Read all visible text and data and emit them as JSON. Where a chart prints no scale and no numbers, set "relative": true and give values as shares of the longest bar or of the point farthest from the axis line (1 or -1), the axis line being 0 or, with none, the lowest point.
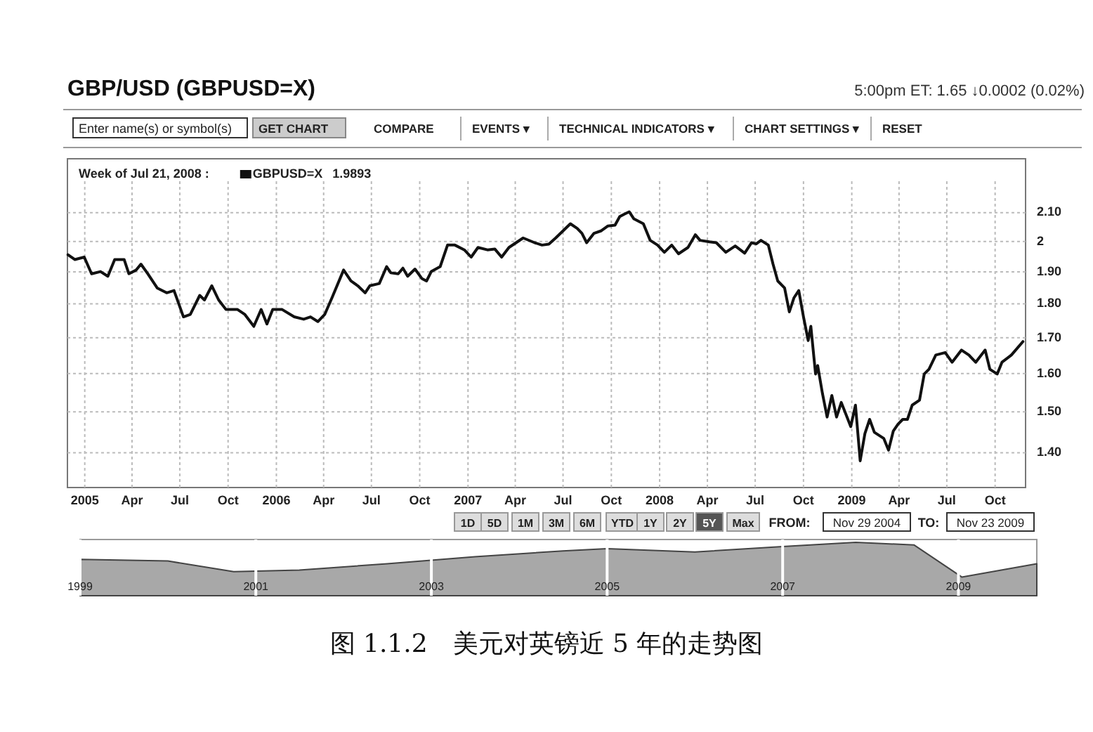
{
  "chart_data": [
    {
      "type": "line",
      "title": "GBP/USD (GBPUSD=X)",
      "log": true,
      "grid": true,
      "legend": "top left",
      "xlim": [
        "2004-11-29",
        "2009-11-28"
      ],
      "xticks": [
        {
          "value": "2005-01-01",
          "label": "2005"
        },
        {
          "value": "2005-04-01",
          "label": "Apr"
        },
        {
          "value": "2005-07-01",
          "label": "Jul"
        },
        {
          "value": "2005-10-01",
          "label": "Oct"
        },
        {
          "value": "2006-01-01",
          "label": "2006"
        },
        {
          "value": "2006-04-01",
          "label": "Apr"
        },
        {
          "value": "2006-07-01",
          "label": "Jul"
        },
        {
          "value": "2006-10-01",
          "label": "Oct"
        },
        {
          "value": "2007-01-01",
          "label": "2007"
        },
        {
          "value": "2007-04-01",
          "label": "Apr"
        },
        {
          "value": "2007-07-01",
          "label": "Jul"
        },
        {
          "value": "2007-10-01",
          "label": "Oct"
        },
        {
          "value": "2008-01-01",
          "label": "2008"
        },
        {
          "value": "2008-04-01",
          "label": "Apr"
        },
        {
          "value": "2008-07-01",
          "label": "Jul"
        },
        {
          "value": "2008-10-01",
          "label": "Oct"
        },
        {
          "value": "2009-01-01",
          "label": "2009"
        },
        {
          "value": "2009-04-01",
          "label": "Apr"
        },
        {
          "value": "2009-07-01",
          "label": "Jul"
        },
        {
          "value": "2009-10-01",
          "label": "Oct"
        }
      ],
      "ylim": [
        1.32,
        2.3
      ],
      "yticks": [
        {
          "value": 1.4,
          "label": "1.40"
        },
        {
          "value": 1.5,
          "label": "1.50"
        },
        {
          "value": 1.6,
          "label": "1.60"
        },
        {
          "value": 1.7,
          "label": "1.70"
        },
        {
          "value": 1.8,
          "label": "1.80"
        },
        {
          "value": 1.9,
          "label": "1.90"
        },
        2,
        {
          "value": 2.1,
          "label": "2.10"
        }
      ],
      "annotations": [
        "5:00pm ET: 1.65 ↓0.0002 (0.02%)",
        "Week of Jul 21, 2008 :",
        "1.9893",
        "Enter name(s) or symbol(s)",
        "GET CHART",
        "COMPARE",
        "EVENTS ▾",
        "TECHNICAL INDICATORS ▾",
        "CHART SETTINGS ▾",
        "RESET",
        "图 1.1.2　美元对英镑近 5 年的走势图"
      ],
      "series": [
        {
          "name": "GBPUSD=X",
          "color": "#111111",
          "x": [
            "2004-11-30",
            "2004-12-13",
            "2004-12-31",
            "2005-01-14",
            "2005-01-31",
            "2005-02-14",
            "2005-02-27",
            "2005-03-17",
            "2005-03-26",
            "2005-04-09",
            "2005-04-18",
            "2005-05-01",
            "2005-05-19",
            "2005-06-06",
            "2005-06-20",
            "2005-07-08",
            "2005-07-21",
            "2005-08-08",
            "2005-08-17",
            "2005-08-31",
            "2005-09-13",
            "2005-09-27",
            "2005-10-19",
            "2005-11-02",
            "2005-11-19",
            "2005-12-03",
            "2005-12-14",
            "2005-12-25",
            "2006-01-12",
            "2006-02-04",
            "2006-02-22",
            "2006-03-07",
            "2006-03-21",
            "2006-04-03",
            "2006-04-17",
            "2006-05-09",
            "2006-05-23",
            "2006-06-05",
            "2006-06-19",
            "2006-06-28",
            "2006-07-16",
            "2006-07-30",
            "2006-08-07",
            "2006-08-21",
            "2006-08-30",
            "2006-09-08",
            "2006-09-22",
            "2006-10-05",
            "2006-10-14",
            "2006-10-23",
            "2006-11-09",
            "2006-11-23",
            "2006-12-07",
            "2006-12-25",
            "2007-01-07",
            "2007-01-20",
            "2007-02-07",
            "2007-02-21",
            "2007-03-06",
            "2007-03-20",
            "2007-04-16",
            "2007-05-08",
            "2007-05-22",
            "2007-06-04",
            "2007-06-17",
            "2007-07-06",
            "2007-07-15",
            "2007-07-28",
            "2007-08-06",
            "2007-08-15",
            "2007-08-29",
            "2007-09-11",
            "2007-09-24",
            "2007-10-08",
            "2007-10-17",
            "2007-10-26",
            "2007-11-04",
            "2007-11-13",
            "2007-12-01",
            "2007-12-14",
            "2007-12-28",
            "2008-01-10",
            "2008-01-24",
            "2008-02-06",
            "2008-02-24",
            "2008-03-09",
            "2008-03-18",
            "2008-04-05",
            "2008-04-18",
            "2008-05-06",
            "2008-05-24",
            "2008-06-11",
            "2008-06-24",
            "2008-07-03",
            "2008-07-12",
            "2008-07-26",
            "2008-08-04",
            "2008-08-13",
            "2008-08-26",
            "2008-09-04",
            "2008-09-13",
            "2008-09-22",
            "2008-10-01",
            "2008-10-10",
            "2008-10-15",
            "2008-10-24",
            "2008-10-28",
            "2008-11-06",
            "2008-11-15",
            "2008-11-24",
            "2008-12-03",
            "2008-12-12",
            "2008-12-30",
            "2009-01-08",
            "2009-01-17",
            "2009-01-26",
            "2009-02-04",
            "2009-02-13",
            "2009-03-03",
            "2009-03-12",
            "2009-03-21",
            "2009-03-30",
            "2009-04-08",
            "2009-04-17",
            "2009-04-26",
            "2009-05-10",
            "2009-05-19",
            "2009-05-28",
            "2009-06-10",
            "2009-06-28",
            "2009-07-11",
            "2009-07-29",
            "2009-08-12",
            "2009-08-25",
            "2009-09-12",
            "2009-09-21",
            "2009-10-05",
            "2009-10-14",
            "2009-11-01",
            "2009-11-23"
          ],
          "values": [
            1.956,
            1.94,
            1.948,
            1.894,
            1.901,
            1.886,
            1.94,
            1.94,
            1.894,
            1.906,
            1.925,
            1.894,
            1.849,
            1.834,
            1.841,
            1.761,
            1.768,
            1.826,
            1.812,
            1.856,
            1.812,
            1.783,
            1.783,
            1.768,
            1.733,
            1.783,
            1.74,
            1.783,
            1.783,
            1.761,
            1.754,
            1.761,
            1.747,
            1.768,
            1.819,
            1.906,
            1.871,
            1.856,
            1.834,
            1.856,
            1.863,
            1.917,
            1.897,
            1.894,
            1.912,
            1.886,
            1.909,
            1.879,
            1.871,
            1.901,
            1.917,
            1.988,
            1.988,
            1.972,
            1.948,
            1.98,
            1.972,
            1.975,
            1.948,
            1.98,
            2.012,
            1.996,
            1.988,
            1.991,
            2.012,
            2.045,
            2.061,
            2.045,
            2.028,
            1.996,
            2.028,
            2.036,
            2.053,
            2.056,
            2.086,
            2.095,
            2.103,
            2.078,
            2.061,
            2.004,
            1.988,
            1.964,
            1.988,
            1.959,
            1.98,
            2.023,
            2.004,
            1.999,
            1.996,
            1.964,
            1.985,
            1.961,
            1.996,
            1.992,
            2.004,
            1.988,
            1.925,
            1.871,
            1.849,
            1.776,
            1.819,
            1.841,
            1.761,
            1.692,
            1.733,
            1.599,
            1.622,
            1.548,
            1.487,
            1.542,
            1.487,
            1.524,
            1.463,
            1.517,
            1.381,
            1.446,
            1.481,
            1.449,
            1.434,
            1.406,
            1.452,
            1.469,
            1.481,
            1.481,
            1.517,
            1.53,
            1.599,
            1.612,
            1.651,
            1.658,
            1.631,
            1.665,
            1.651,
            1.631,
            1.665,
            1.612,
            1.599,
            1.631,
            1.651,
            1.689
          ]
        }
      ]
    },
    {
      "type": "area",
      "relative": true,
      "grid": "x",
      "color": "#a8a8a8",
      "xlim": [
        "1999-01-01",
        "2009-11-23"
      ],
      "xticks": [
        {
          "value": "1999-01-01",
          "label": "1999"
        },
        {
          "value": "2001-01-01",
          "label": "2001"
        },
        {
          "value": "2003-01-01",
          "label": "2003"
        },
        {
          "value": "2005-01-01",
          "label": "2005"
        },
        {
          "value": "2007-01-01",
          "label": "2007"
        },
        {
          "value": "2009-01-01",
          "label": "2009"
        }
      ],
      "x": [
        "1999-01-01",
        "2000-01-01",
        "2000-10-01",
        "2001-07-01",
        "2002-07-01",
        "2003-07-01",
        "2004-07-01",
        "2005-01-01",
        "2006-01-01",
        "2007-01-01",
        "2007-11-01",
        "2008-07-01",
        "2009-01-15",
        "2009-11-23"
      ],
      "values": [
        0.68,
        0.65,
        0.45,
        0.48,
        0.6,
        0.73,
        0.84,
        0.88,
        0.82,
        0.92,
        1,
        0.95,
        0.35,
        0.6
      ],
      "annotations": [
        "1D",
        "5D",
        "1M",
        "3M",
        "6M",
        "YTD",
        "1Y",
        "2Y",
        "5Y",
        "Max",
        "FROM:",
        "Nov 29 2004",
        "TO:",
        "Nov 23 2009"
      ]
    }
  ]
}
